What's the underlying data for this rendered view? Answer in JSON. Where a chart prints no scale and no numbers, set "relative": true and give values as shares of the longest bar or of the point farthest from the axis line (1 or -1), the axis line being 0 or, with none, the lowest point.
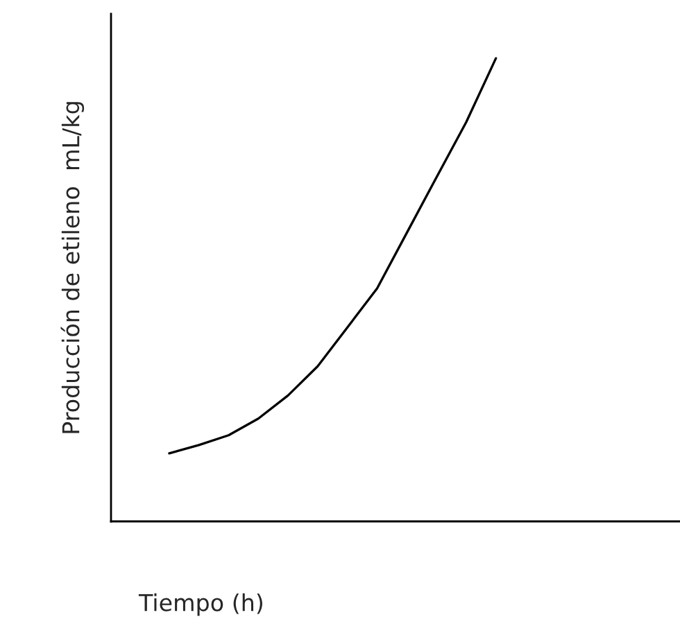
{
  "chart_data": {
    "type": "line",
    "relative": true,
    "xlabel": "Tiempo (h)",
    "ylabel": "Producción de etileno  mL/kg",
    "categories": [
      null,
      null,
      null,
      null,
      null,
      null,
      null,
      null,
      null,
      null,
      null,
      null
    ],
    "series": [
      {
        "color": "#000000",
        "values": [
          0.147,
          0.165,
          0.186,
          0.222,
          0.272,
          0.335,
          0.419,
          0.503,
          0.623,
          0.743,
          0.862,
          1.0
        ]
      }
    ],
    "marker": "none",
    "line_style": "solid",
    "grid": false,
    "legend": false
  }
}
